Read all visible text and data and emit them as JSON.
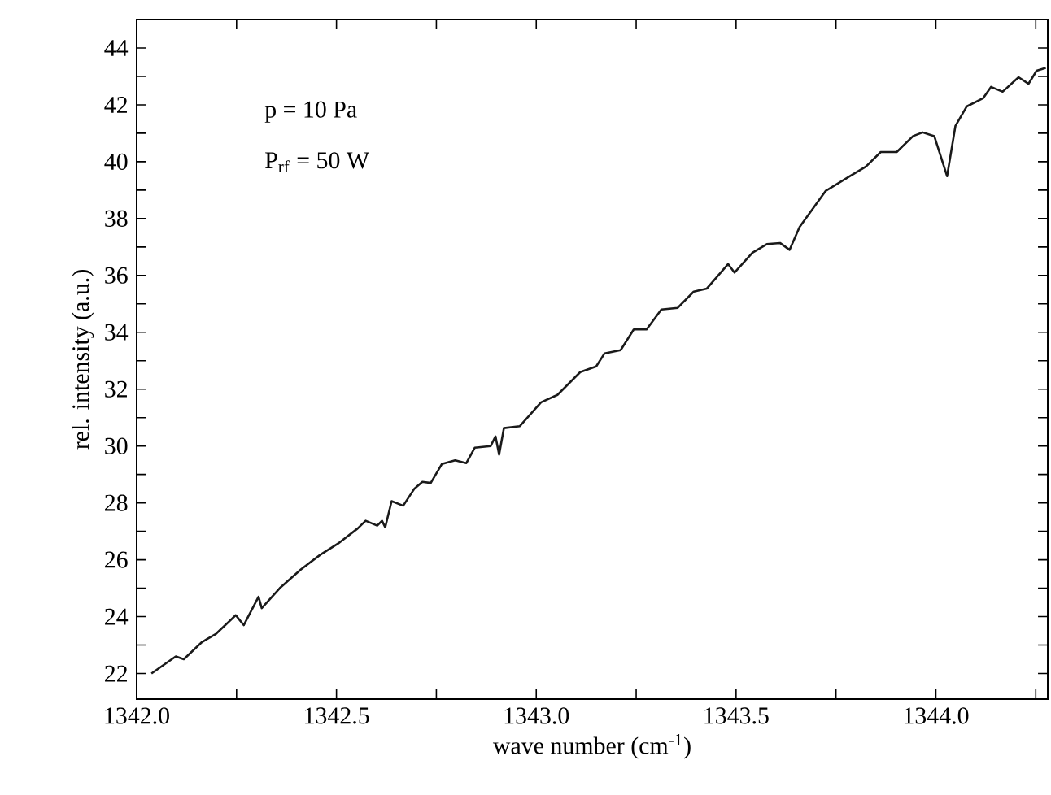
{
  "chart_data": {
    "type": "line",
    "xlabel": "wave number (cm$^{-1}$)",
    "ylabel": "rel. intensity (a.u.)",
    "annotations": [
      "p = 10 Pa",
      "P$_{rf}$ = 50 W"
    ],
    "xlim": [
      1342.0,
      1344.28
    ],
    "ylim": [
      21.1,
      45
    ],
    "xticks": [
      {
        "value": 1342.0,
        "label": "1342.0"
      },
      {
        "value": 1342.25,
        "label": null
      },
      {
        "value": 1342.5,
        "label": "1342.5"
      },
      {
        "value": 1342.75,
        "label": null
      },
      {
        "value": 1343.0,
        "label": "1343.0"
      },
      {
        "value": 1343.25,
        "label": null
      },
      {
        "value": 1343.5,
        "label": "1343.5"
      },
      {
        "value": 1343.75,
        "label": null
      },
      {
        "value": 1344.0,
        "label": "1344.0"
      },
      {
        "value": 1344.25,
        "label": null
      }
    ],
    "yticks": [
      22,
      {
        "value": 23,
        "label": null
      },
      24,
      {
        "value": 25,
        "label": null
      },
      26,
      {
        "value": 27,
        "label": null
      },
      28,
      {
        "value": 29,
        "label": null
      },
      30,
      {
        "value": 31,
        "label": null
      },
      32,
      {
        "value": 33,
        "label": null
      },
      34,
      {
        "value": 35,
        "label": null
      },
      36,
      {
        "value": 37,
        "label": null
      },
      38,
      {
        "value": 39,
        "label": null
      },
      40,
      {
        "value": 41,
        "label": null
      },
      42,
      {
        "value": 43,
        "label": null
      },
      44
    ],
    "marker": "none",
    "line_style": "solid",
    "x": [
      1342.037,
      1342.098,
      1342.118,
      1342.163,
      1342.199,
      1342.248,
      1342.268,
      1342.305,
      1342.313,
      1342.358,
      1342.411,
      1342.459,
      1342.504,
      1342.553,
      1342.573,
      1342.602,
      1342.614,
      1342.622,
      1342.638,
      1342.667,
      1342.695,
      1342.715,
      1342.736,
      1342.764,
      1342.797,
      1342.825,
      1342.846,
      1342.886,
      1342.898,
      1342.907,
      1342.919,
      1342.959,
      1343.012,
      1343.053,
      1343.11,
      1343.15,
      1343.171,
      1343.211,
      1343.244,
      1343.276,
      1343.313,
      1343.354,
      1343.394,
      1343.427,
      1343.48,
      1343.496,
      1343.541,
      1343.577,
      1343.61,
      1343.634,
      1343.659,
      1343.724,
      1343.785,
      1343.825,
      1343.862,
      1343.902,
      1343.943,
      1343.967,
      1343.996,
      1344.028,
      1344.049,
      1344.077,
      1344.118,
      1344.138,
      1344.167,
      1344.207,
      1344.232,
      1344.252,
      1344.275
    ],
    "series": [
      {
        "color": "#1a1a1a",
        "values": [
          22.0,
          22.6,
          22.5,
          23.1,
          23.4,
          24.05,
          23.7,
          24.7,
          24.3,
          25.0,
          25.66,
          26.17,
          26.57,
          27.1,
          27.37,
          27.2,
          27.37,
          27.14,
          28.06,
          27.9,
          28.5,
          28.74,
          28.7,
          29.37,
          29.5,
          29.4,
          29.94,
          30.0,
          30.34,
          29.7,
          30.63,
          30.7,
          31.54,
          31.8,
          32.6,
          32.8,
          33.26,
          33.37,
          34.1,
          34.1,
          34.8,
          34.86,
          35.43,
          35.54,
          36.4,
          36.1,
          36.8,
          37.1,
          37.14,
          36.9,
          37.7,
          38.97,
          39.49,
          39.83,
          40.34,
          40.34,
          40.9,
          41.03,
          40.9,
          39.49,
          41.26,
          41.94,
          42.23,
          42.63,
          42.46,
          42.97,
          42.74,
          43.2,
          43.3
        ]
      }
    ]
  }
}
